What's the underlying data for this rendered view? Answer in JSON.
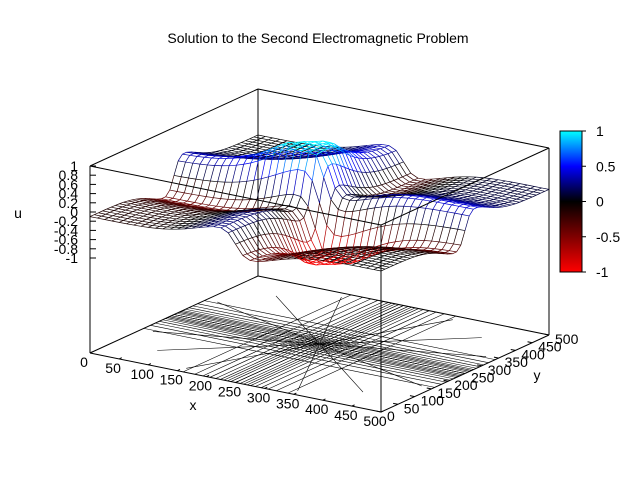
{
  "chart_data": {
    "type": "surface3d",
    "title": "Solution to the Second Electromagnetic Problem",
    "xlabel": "x",
    "ylabel": "y",
    "zlabel": "u",
    "xlim": [
      0,
      500
    ],
    "ylim": [
      0,
      500
    ],
    "zlim": [
      -1,
      1
    ],
    "x_ticks": [
      0,
      50,
      100,
      150,
      200,
      250,
      300,
      350,
      400,
      450,
      500
    ],
    "y_ticks": [
      0,
      50,
      100,
      150,
      200,
      250,
      300,
      350,
      400,
      450,
      500
    ],
    "z_ticks": [
      -1,
      -0.8,
      -0.6,
      -0.4,
      -0.2,
      0,
      0.2,
      0.4,
      0.6,
      0.8,
      1
    ],
    "x_tick_labels": [
      "0",
      "50",
      "100",
      "150",
      "200",
      "250",
      "300",
      "350",
      "400",
      "450",
      "500"
    ],
    "y_tick_labels": [
      "0",
      "50",
      "100",
      "150",
      "200",
      "250",
      "300",
      "350",
      "400",
      "450",
      "500"
    ],
    "z_tick_labels": [
      "-1",
      "-0.8",
      "-0.6",
      "-0.4",
      "-0.2",
      "0",
      "0.2",
      "0.4",
      "0.6",
      "0.8",
      "1"
    ],
    "grid": false,
    "contours_on_base": true,
    "surface": {
      "style": "wireframe mesh",
      "features": [
        {
          "kind": "ridge",
          "along": "x",
          "center_y": 250,
          "sign": "+",
          "peak": 1
        },
        {
          "kind": "trough",
          "along": "y",
          "center_x": 250,
          "sign": "-",
          "peak": -1
        }
      ],
      "baseline": 0
    },
    "colorbar": {
      "min": -1,
      "max": 1,
      "ticks": [
        1,
        0.5,
        0,
        -0.5,
        -1
      ],
      "tick_labels": [
        "1",
        "0.5",
        "0",
        "-0.5",
        "-1"
      ],
      "colors": [
        "#ff0000",
        "#000000",
        "#0000ff",
        "#00ffff"
      ]
    }
  }
}
